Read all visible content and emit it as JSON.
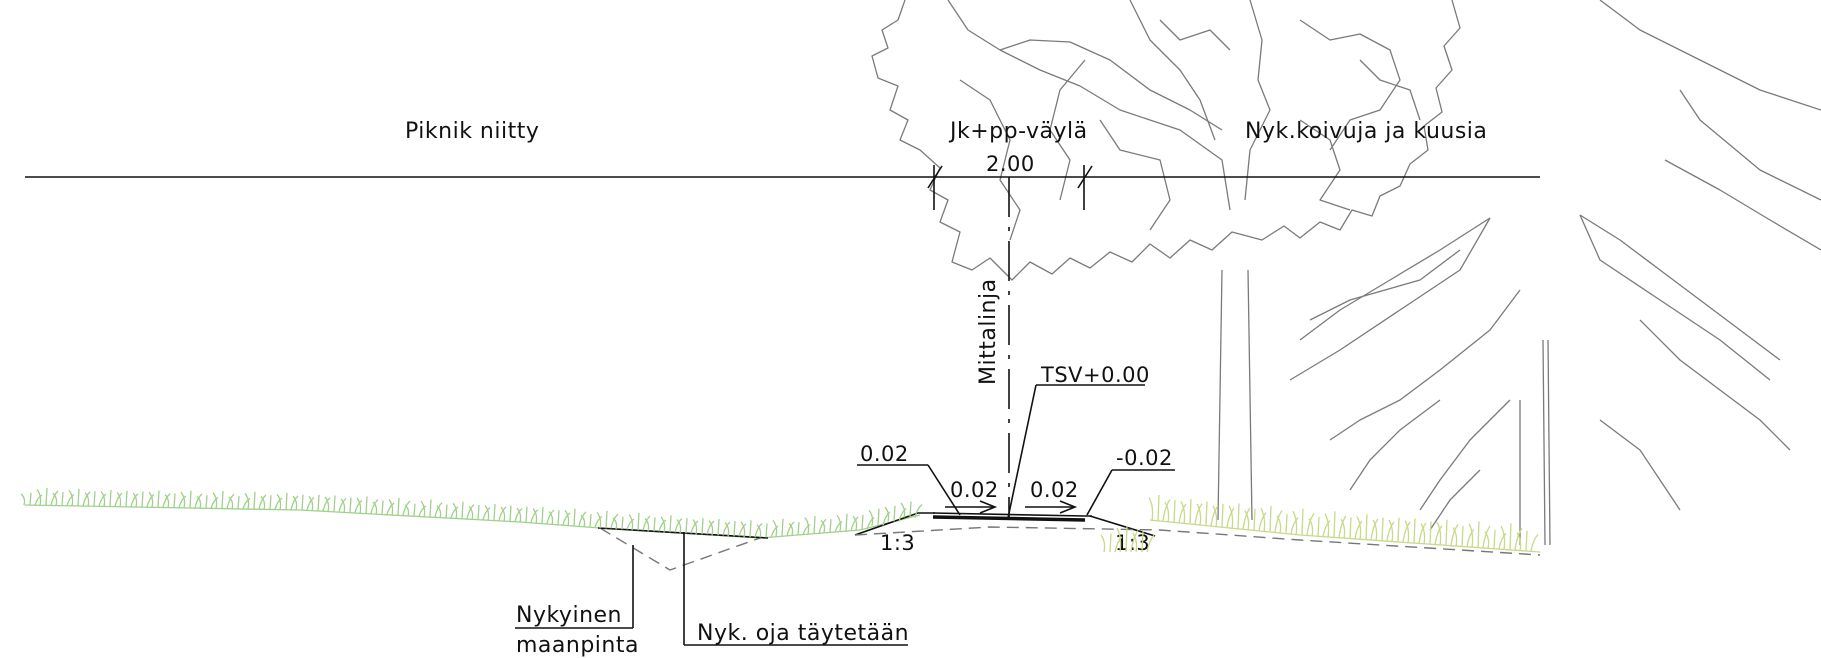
{
  "title_labels": {
    "left_area": "Piknik niitty",
    "path": "Jk+pp-väylä",
    "right_area": "Nyk.koivuja ja kuusia"
  },
  "dimensions": {
    "path_width": "2.00",
    "centerline": "Mittalinja",
    "tsv": "TSV+0.00",
    "slope_left_outer": "0.02",
    "slope_left_inner": "0.02",
    "slope_right_inner": "0.02",
    "slope_right_outer": "-0.02",
    "batter_left": "1:3",
    "batter_right": "1:3"
  },
  "callouts": {
    "ground_line1": "Nykyinen",
    "ground_line2": "maanpinta",
    "ditch": "Nyk. oja täytetään"
  },
  "colors": {
    "grass_left": "#9fd18a",
    "grass_right": "#c7d98a",
    "tree_outline": "#7a7a7a",
    "ink": "#111111"
  }
}
